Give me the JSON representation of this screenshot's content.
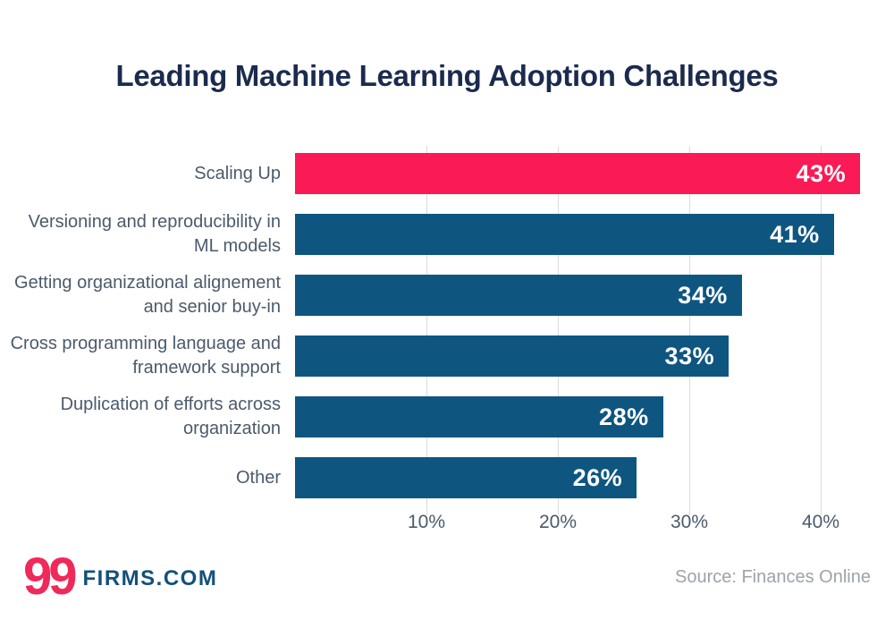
{
  "chart_data": {
    "type": "bar",
    "orientation": "horizontal",
    "title": "Leading Machine Learning Adoption Challenges",
    "categories": [
      "Scaling Up",
      "Versioning and reproducibility in ML models",
      "Getting organizational alignement and senior buy-in",
      "Cross programming language and framework support",
      "Duplication of efforts across organization",
      "Other"
    ],
    "values": [
      43,
      41,
      34,
      33,
      28,
      26
    ],
    "value_labels": [
      "43%",
      "41%",
      "34%",
      "33%",
      "28%",
      "26%"
    ],
    "bar_colors": [
      "#FA1A55",
      "#0E5680",
      "#0E5680",
      "#0E5680",
      "#0E5680",
      "#0E5680"
    ],
    "highlight_color": "#FA1A55",
    "default_bar_color": "#0E5680",
    "x_ticks": [
      {
        "value": 10,
        "label": "10%"
      },
      {
        "value": 20,
        "label": "20%"
      },
      {
        "value": 30,
        "label": "30%"
      },
      {
        "value": 40,
        "label": "40%"
      }
    ],
    "xlim": [
      0,
      44
    ],
    "grid": true,
    "legend": "none",
    "value_label_position": "inside-end"
  },
  "colors": {
    "title_navy": "#1B2B4E",
    "category_label_gray": "#4B5A6B",
    "gridline_gray": "#DBDBDB",
    "value_label_white": "#FFFFFF",
    "logo_pink": "#F0295B",
    "logo_blue": "#13507B",
    "source_gray": "#9CA3AB",
    "background": "#FFFFFF"
  },
  "footer": {
    "logo_number": "99",
    "logo_text": "FIRMS.COM",
    "source": "Source: Finances Online"
  }
}
